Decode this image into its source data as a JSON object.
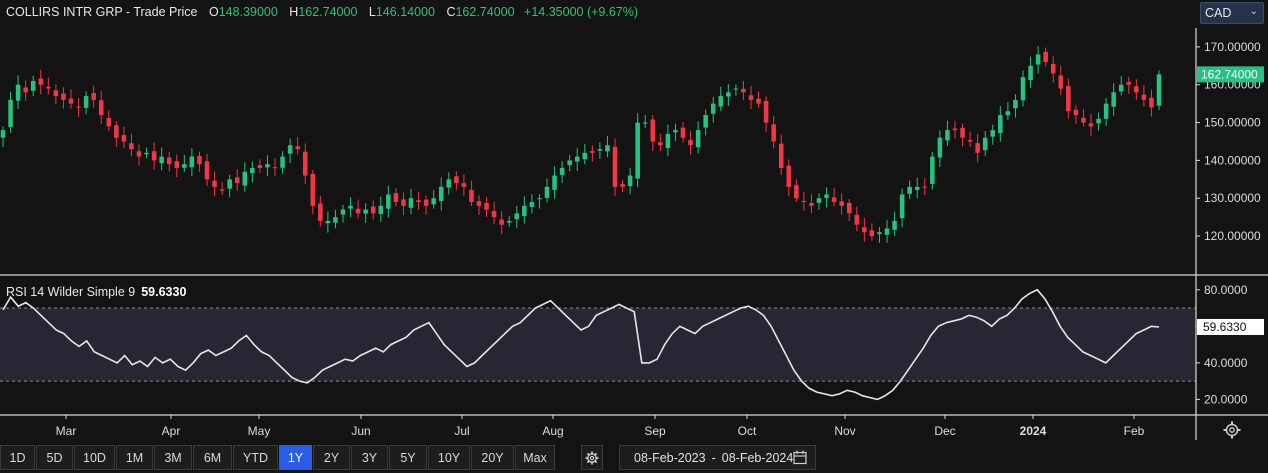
{
  "header": {
    "title": "COLLIRS INTR GRP - Trade Price",
    "o_label": "O",
    "o_value": "148.39000",
    "h_label": "H",
    "h_value": "162.74000",
    "l_label": "L",
    "l_value": "146.14000",
    "c_label": "C",
    "c_value": "162.74000",
    "change": "+14.35000 (+9.67%)"
  },
  "currency": {
    "value": "CAD",
    "icon": "chevron-down-icon"
  },
  "rsi": {
    "label": "RSI 14 Wilder Simple 9",
    "value": "59.6330"
  },
  "ranges": [
    "1D",
    "5D",
    "10D",
    "1M",
    "3M",
    "6M",
    "YTD",
    "1Y",
    "2Y",
    "3Y",
    "5Y",
    "10Y",
    "20Y",
    "Max"
  ],
  "active_range": "1Y",
  "date_range": {
    "from": "08-Feb-2023",
    "sep": "-",
    "to": "08-Feb-2024"
  },
  "colors": {
    "up": "#26c281",
    "down": "#f23645",
    "active": "#2b5ce6",
    "rsi_band": "#2a2533"
  },
  "chart_data": [
    {
      "type": "candlestick",
      "title": "COLLIRS INTR GRP - Trade Price",
      "x_ticks": [
        "Mar",
        "Apr",
        "May",
        "Jun",
        "Jul",
        "Aug",
        "Sep",
        "Oct",
        "Nov",
        "Dec",
        "2024",
        "Feb"
      ],
      "y_ticks": [
        "170.00000",
        "160.00000",
        "150.00000",
        "140.00000",
        "130.00000",
        "120.00000"
      ],
      "ylim": [
        110.5,
        175
      ],
      "last_price": "162.74000",
      "close_series": [
        148,
        156,
        160,
        158,
        161,
        160,
        159,
        157,
        156,
        155,
        154,
        157,
        156,
        152,
        149,
        146,
        145,
        143,
        141,
        142,
        140,
        141,
        139,
        138,
        139,
        141,
        139,
        135,
        133,
        132,
        135,
        134,
        137,
        138,
        138,
        139,
        138,
        141,
        144,
        143,
        136,
        128,
        124,
        124,
        125,
        127,
        128,
        126,
        127,
        126,
        128,
        131,
        129,
        128,
        130,
        129,
        128,
        130,
        133,
        135,
        134,
        133,
        129,
        128,
        127,
        125,
        123,
        124,
        126,
        128,
        129,
        130,
        133,
        136,
        138,
        140,
        141,
        142,
        142,
        143,
        144,
        133,
        133,
        136,
        150,
        150,
        145,
        144,
        147,
        148,
        146,
        144,
        148,
        152,
        155,
        157,
        158,
        159,
        158,
        156,
        155,
        150,
        145,
        138,
        133,
        130,
        129,
        128,
        130,
        131,
        129,
        128,
        126,
        123,
        121,
        120,
        121,
        122,
        124,
        131,
        133,
        133,
        133,
        141,
        146,
        148,
        148,
        146,
        145,
        142,
        146,
        148,
        152,
        153,
        156,
        162,
        165,
        168,
        166,
        163,
        159,
        153,
        152,
        150,
        149,
        151,
        155,
        158,
        160,
        160,
        158,
        156,
        154,
        162.74
      ]
    },
    {
      "type": "line",
      "title": "RSI 14 Wilder Simple 9",
      "y_ticks": [
        "80.0000",
        "60.0000",
        "40.0000",
        "20.0000"
      ],
      "ylim": [
        12,
        87
      ],
      "band": [
        30,
        70
      ],
      "last_value": "59.6330",
      "values": [
        69,
        76,
        71,
        73,
        70,
        66,
        62,
        58,
        56,
        52,
        49,
        52,
        46,
        44,
        42,
        40,
        44,
        39,
        41,
        38,
        43,
        40,
        42,
        38,
        36,
        40,
        45,
        47,
        44,
        46,
        48,
        52,
        55,
        50,
        46,
        44,
        40,
        36,
        32,
        30,
        29,
        32,
        36,
        38,
        40,
        42,
        41,
        44,
        46,
        48,
        46,
        50,
        52,
        54,
        58,
        60,
        62,
        56,
        50,
        46,
        42,
        38,
        40,
        44,
        48,
        52,
        56,
        60,
        62,
        66,
        70,
        72,
        74,
        70,
        66,
        62,
        58,
        60,
        66,
        68,
        70,
        72,
        70,
        68,
        40,
        40,
        42,
        50,
        56,
        60,
        58,
        56,
        60,
        62,
        64,
        66,
        68,
        70,
        71,
        69,
        66,
        60,
        52,
        44,
        36,
        30,
        26,
        24,
        23,
        22,
        23,
        25,
        24,
        22,
        21,
        20,
        22,
        25,
        30,
        36,
        42,
        48,
        55,
        60,
        62,
        63,
        64,
        66,
        65,
        63,
        60,
        64,
        66,
        70,
        75,
        78,
        80,
        75,
        68,
        60,
        54,
        50,
        46,
        44,
        42,
        40,
        44,
        48,
        52,
        56,
        58,
        60,
        59.633
      ]
    }
  ]
}
